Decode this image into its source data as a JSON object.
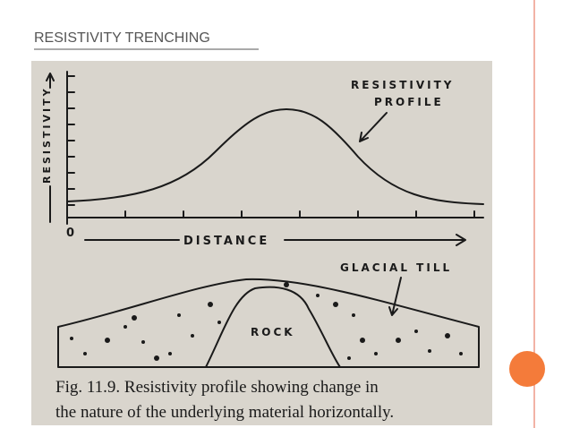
{
  "slide": {
    "title": "RESISTIVITY TRENCHING"
  },
  "figure": {
    "y_axis_label": "RESISTIVITY",
    "origin": "0",
    "x_axis_label": "DISTANCE",
    "profile_label": [
      "RESISTIVITY",
      "PROFILE"
    ],
    "till_label": "GLACIAL TILL",
    "rock_label": "ROCK",
    "caption": [
      "Fig. 11.9. Resistivity profile showing change in",
      "the nature of the underlying material horizontally."
    ]
  }
}
